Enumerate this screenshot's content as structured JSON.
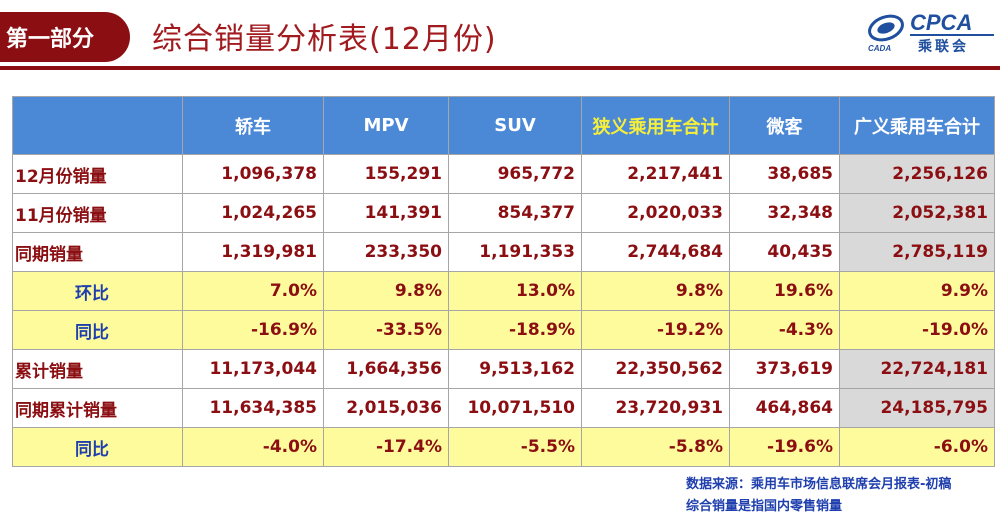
{
  "header": {
    "section_label": "第一部分",
    "title": "综合销量分析表(12月份)",
    "logo_text": "CPCA",
    "logo_sub": "乘联会",
    "logo_cada": "CADA"
  },
  "table": {
    "columns": [
      "",
      "轿车",
      "MPV",
      "SUV",
      "狭义乘用车合计",
      "微客",
      "广义乘用车合计"
    ],
    "rows": [
      {
        "label": "12月份销量",
        "values": [
          "1,096,378",
          "155,291",
          "965,772",
          "2,217,441",
          "38,685",
          "2,256,126"
        ]
      },
      {
        "label": "11月份销量",
        "values": [
          "1,024,265",
          "141,391",
          "854,377",
          "2,020,033",
          "32,348",
          "2,052,381"
        ]
      },
      {
        "label": "同期销量",
        "values": [
          "1,319,981",
          "233,350",
          "1,191,353",
          "2,744,684",
          "40,435",
          "2,785,119"
        ]
      },
      {
        "label": "环比",
        "values": [
          "7.0%",
          "9.8%",
          "13.0%",
          "9.8%",
          "19.6%",
          "9.9%"
        ]
      },
      {
        "label": "同比",
        "values": [
          "-16.9%",
          "-33.5%",
          "-18.9%",
          "-19.2%",
          "-4.3%",
          "-19.0%"
        ]
      },
      {
        "label": "累计销量",
        "values": [
          "11,173,044",
          "1,664,356",
          "9,513,162",
          "22,350,562",
          "373,619",
          "22,724,181"
        ]
      },
      {
        "label": "同期累计销量",
        "values": [
          "11,634,385",
          "2,015,036",
          "10,071,510",
          "23,720,931",
          "464,864",
          "24,185,795"
        ]
      },
      {
        "label": "同比",
        "values": [
          "-4.0%",
          "-17.4%",
          "-5.5%",
          "-5.8%",
          "-19.6%",
          "-6.0%"
        ]
      }
    ]
  },
  "footnotes": {
    "source": "数据来源：乘用车市场信息联席会月报表-初稿",
    "note": "综合销量是指国内零售销量"
  },
  "colors": {
    "brand_red": "#8b0f12",
    "header_blue": "#4b88d6",
    "highlight_yellow": "#fdfb9c",
    "total_gray": "#d9d9d9",
    "ratio_label_blue": "#1f3fae"
  }
}
